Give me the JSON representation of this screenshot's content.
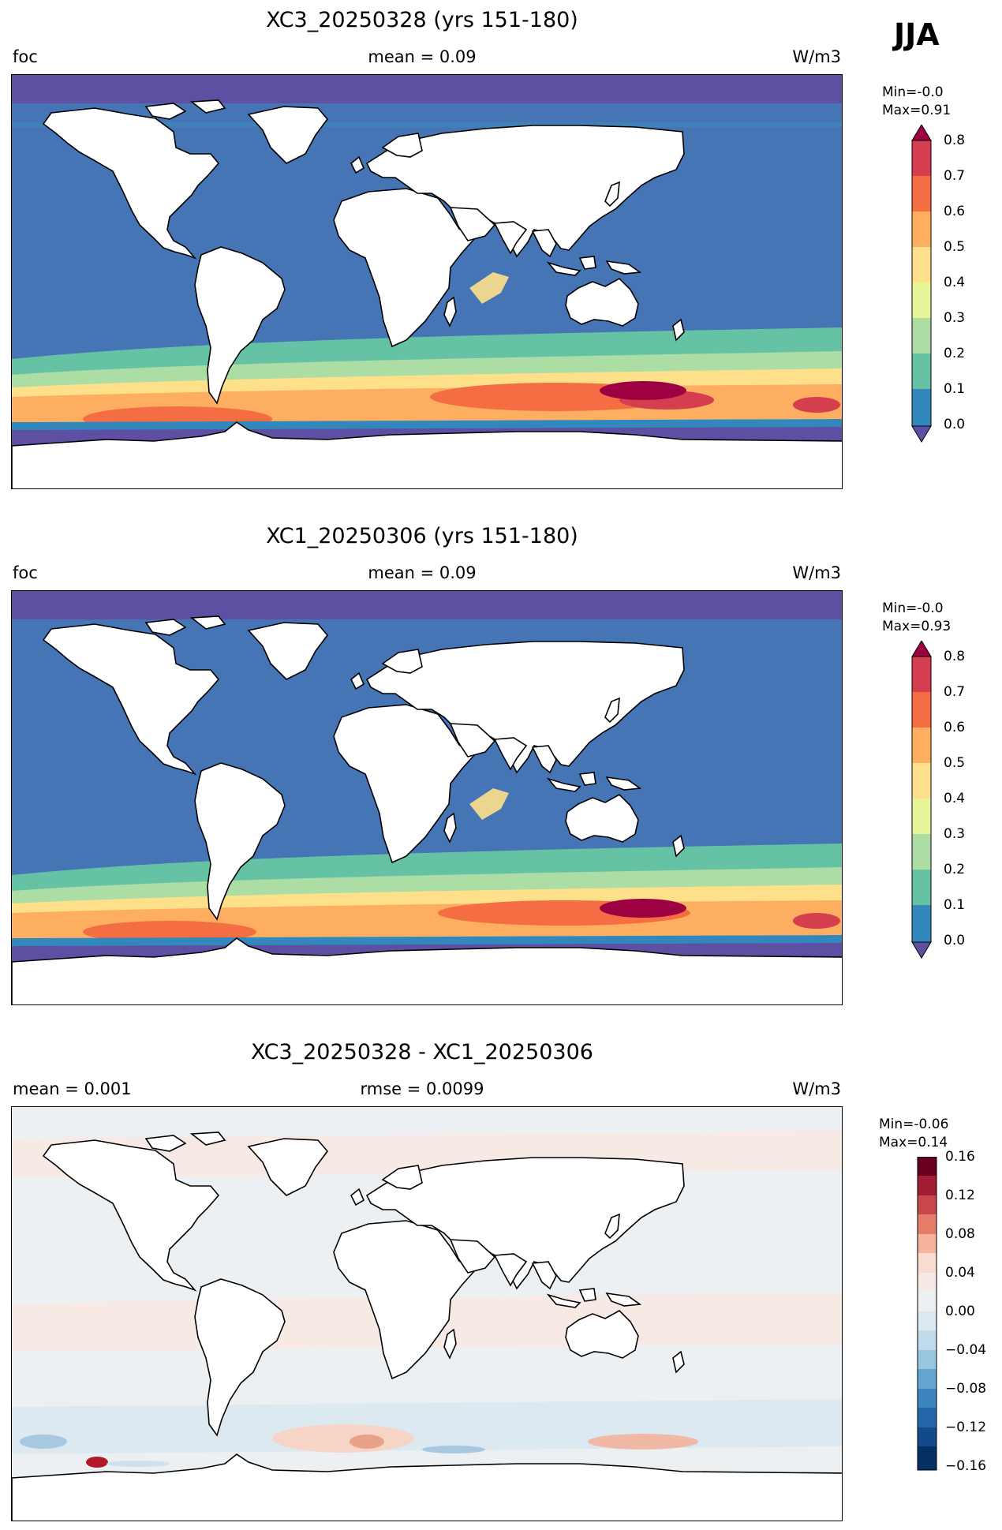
{
  "season": "JJA",
  "colors": {
    "ocean_low": "#4575b4",
    "polar": "#5e4fa2",
    "land": "#ffffff",
    "diff_bg": "#ecf0f3"
  },
  "panels": [
    {
      "title": "XC3_20250328 (yrs 151-180)",
      "left_label": "foc",
      "center_label": "mean = 0.09",
      "units": "W/m3",
      "min_text": "Min=-0.0",
      "max_text": "Max=0.91",
      "colorbar": {
        "cmap": "Spectral_r",
        "ticks": [
          "0.8",
          "0.7",
          "0.6",
          "0.5",
          "0.4",
          "0.3",
          "0.2",
          "0.1",
          "0.0"
        ],
        "range": [
          0.0,
          0.8
        ],
        "extend": "both"
      }
    },
    {
      "title": "XC1_20250306 (yrs 151-180)",
      "left_label": "foc",
      "center_label": "mean = 0.09",
      "units": "W/m3",
      "min_text": "Min=-0.0",
      "max_text": "Max=0.93",
      "colorbar": {
        "cmap": "Spectral_r",
        "ticks": [
          "0.8",
          "0.7",
          "0.6",
          "0.5",
          "0.4",
          "0.3",
          "0.2",
          "0.1",
          "0.0"
        ],
        "range": [
          0.0,
          0.8
        ],
        "extend": "both"
      }
    },
    {
      "title": "XC3_20250328 - XC1_20250306",
      "left_label": "mean = 0.001",
      "center_label": "rmse = 0.0099",
      "units": "W/m3",
      "min_text": "Min=-0.06",
      "max_text": "Max=0.14",
      "colorbar": {
        "cmap": "RdBu_r",
        "ticks": [
          "0.16",
          "0.12",
          "0.08",
          "0.04",
          "0.00",
          "−0.04",
          "−0.08",
          "−0.12",
          "−0.16"
        ],
        "range": [
          -0.16,
          0.16
        ],
        "extend": "neither"
      }
    }
  ]
}
